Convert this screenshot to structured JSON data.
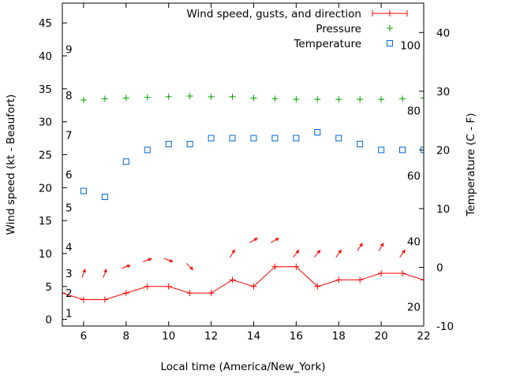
{
  "chart_data": {
    "type": "line",
    "xlabel": "Local time (America/New_York)",
    "ylabel": "Wind speed (kt - Beaufort)",
    "y2label": "Temperature (C - F)",
    "xlim": [
      5,
      22
    ],
    "ylim": [
      -1,
      48
    ],
    "y2lim": [
      -10,
      45
    ],
    "x_ticks": [
      6,
      8,
      10,
      12,
      14,
      16,
      18,
      20,
      22
    ],
    "y_ticks": [
      0,
      5,
      10,
      15,
      20,
      25,
      30,
      35,
      40,
      45
    ],
    "y2_ticks": [
      -10,
      0,
      10,
      20,
      30,
      40
    ],
    "beaufort_ticks": [
      {
        "label": "1",
        "wind": 1
      },
      {
        "label": "2",
        "wind": 4
      },
      {
        "label": "3",
        "wind": 7
      },
      {
        "label": "4",
        "wind": 11
      },
      {
        "label": "5",
        "wind": 17
      },
      {
        "label": "6",
        "wind": 22
      },
      {
        "label": "7",
        "wind": 28
      },
      {
        "label": "8",
        "wind": 34
      },
      {
        "label": "9",
        "wind": 41
      }
    ],
    "fahrenheit_ticks": [
      {
        "label": "20",
        "celsius": -6.7
      },
      {
        "label": "40",
        "celsius": 4.4
      },
      {
        "label": "60",
        "celsius": 15.6
      },
      {
        "label": "80",
        "celsius": 26.7
      },
      {
        "label": "100",
        "celsius": 37.8
      }
    ],
    "legend_position": "top-right",
    "series": [
      {
        "name": "Wind speed, gusts, and direction",
        "color": "#ff0000",
        "x": [
          5,
          6,
          7,
          8,
          9,
          10,
          11,
          12,
          13,
          14,
          15,
          16,
          17,
          18,
          19,
          20,
          21,
          22
        ],
        "values": [
          4,
          3,
          3,
          4,
          5,
          5,
          4,
          4,
          6,
          5,
          8,
          8,
          5,
          6,
          6,
          7,
          7,
          6
        ],
        "arrow_level": [
          7,
          7,
          8,
          9,
          9,
          8,
          null,
          10,
          12,
          12,
          10,
          10,
          10,
          11,
          11,
          10
        ],
        "arrow_direction_deg": [
          200,
          200,
          250,
          250,
          290,
          315,
          null,
          210,
          240,
          240,
          220,
          220,
          215,
          215,
          210,
          215
        ]
      },
      {
        "name": "Pressure",
        "color": "#00a000",
        "x": [
          6,
          7,
          8,
          9,
          10,
          11,
          12,
          13,
          14,
          15,
          16,
          17,
          18,
          19,
          20,
          21,
          22
        ],
        "values": [
          33.3,
          33.5,
          33.6,
          33.7,
          33.8,
          33.9,
          33.8,
          33.8,
          33.6,
          33.5,
          33.4,
          33.4,
          33.4,
          33.4,
          33.4,
          33.5,
          33.6
        ]
      },
      {
        "name": "Temperature",
        "color": "#0066cc",
        "x": [
          6,
          7,
          8,
          9,
          10,
          11,
          12,
          13,
          14,
          15,
          16,
          17,
          18,
          19,
          20,
          21,
          22
        ],
        "values": [
          13,
          12,
          18,
          20,
          21,
          21,
          22,
          22,
          22,
          22,
          22,
          23,
          22,
          21,
          20,
          20,
          20
        ]
      }
    ]
  }
}
